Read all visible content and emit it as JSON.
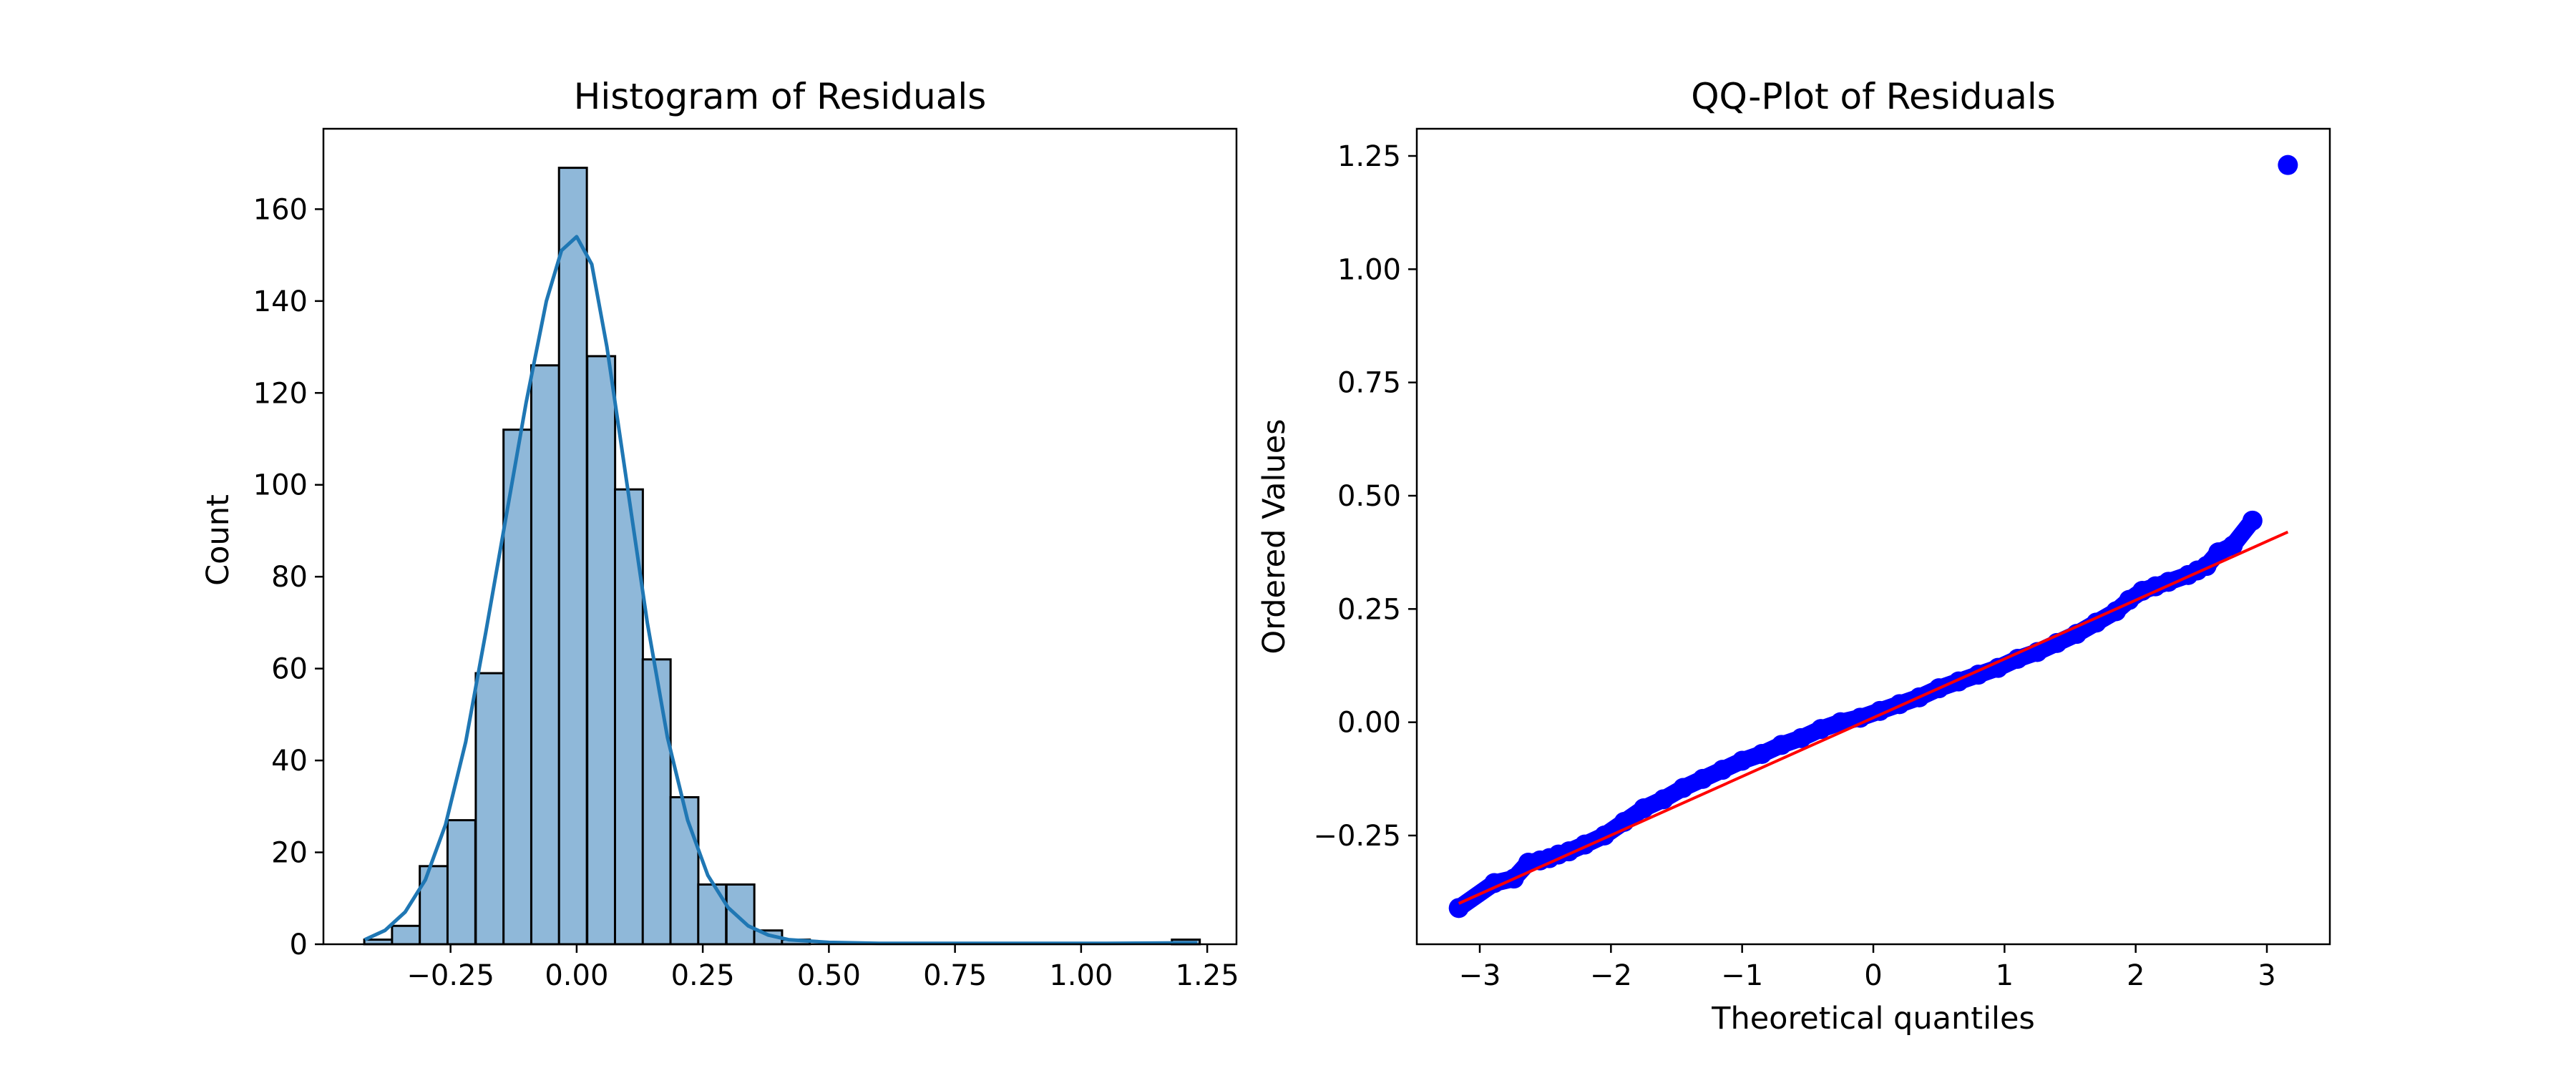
{
  "colors": {
    "hist_fill": "#8fb8d9",
    "hist_edge": "#000000",
    "kde": "#1f77b4",
    "qq_points": "#0000ff",
    "qq_line": "#ff0000"
  },
  "chart_data": [
    {
      "type": "bar",
      "title": "Histogram of Residuals",
      "xlabel": "",
      "ylabel": "Count",
      "bin_width": 0.0552,
      "bins": [
        {
          "x0": -0.421,
          "count": 1
        },
        {
          "x0": -0.366,
          "count": 4
        },
        {
          "x0": -0.311,
          "count": 17
        },
        {
          "x0": -0.256,
          "count": 27
        },
        {
          "x0": -0.2,
          "count": 59
        },
        {
          "x0": -0.145,
          "count": 112
        },
        {
          "x0": -0.09,
          "count": 126
        },
        {
          "x0": -0.035,
          "count": 169
        },
        {
          "x0": 0.021,
          "count": 128
        },
        {
          "x0": 0.076,
          "count": 99
        },
        {
          "x0": 0.131,
          "count": 62
        },
        {
          "x0": 0.186,
          "count": 32
        },
        {
          "x0": 0.241,
          "count": 13
        },
        {
          "x0": 0.297,
          "count": 13
        },
        {
          "x0": 0.352,
          "count": 3
        },
        {
          "x0": 0.407,
          "count": 1
        },
        {
          "x0": 1.18,
          "count": 1
        }
      ],
      "kde": {
        "x": [
          -0.42,
          -0.38,
          -0.34,
          -0.3,
          -0.26,
          -0.22,
          -0.18,
          -0.14,
          -0.1,
          -0.06,
          -0.03,
          0.0,
          0.03,
          0.06,
          0.1,
          0.14,
          0.18,
          0.22,
          0.26,
          0.3,
          0.34,
          0.38,
          0.42,
          0.5,
          0.6,
          0.75,
          0.9,
          1.05,
          1.2,
          1.23
        ],
        "y": [
          1,
          3,
          7,
          14,
          26,
          44,
          68,
          93,
          118,
          140,
          151,
          154,
          148,
          130,
          100,
          70,
          45,
          27,
          15,
          8,
          4,
          2,
          1,
          0.4,
          0.2,
          0.2,
          0.2,
          0.2,
          0.3,
          0.3
        ]
      },
      "xticks": [
        "−0.25",
        "0.00",
        "0.25",
        "0.50",
        "0.75",
        "1.00",
        "1.25"
      ],
      "xtick_values": [
        -0.25,
        0,
        0.25,
        0.5,
        0.75,
        1.0,
        1.25
      ],
      "yticks": [
        "0",
        "20",
        "40",
        "60",
        "80",
        "100",
        "120",
        "140",
        "160"
      ],
      "ytick_values": [
        0,
        20,
        40,
        60,
        80,
        100,
        120,
        140,
        160
      ],
      "xlim": [
        -0.502,
        1.308
      ],
      "ylim": [
        0,
        177.5
      ],
      "grid": false
    },
    {
      "type": "scatter",
      "title": "QQ-Plot of Residuals",
      "xlabel": "Theoretical quantiles",
      "ylabel": "Ordered Values",
      "points": [
        [
          -3.16,
          -0.41
        ],
        [
          -2.89,
          -0.355
        ],
        [
          -2.74,
          -0.345
        ],
        [
          -2.63,
          -0.31
        ],
        [
          -2.54,
          -0.305
        ],
        [
          -2.47,
          -0.3
        ],
        [
          -2.4,
          -0.292
        ],
        [
          -2.32,
          -0.285
        ],
        [
          -2.2,
          -0.27
        ],
        [
          -2.05,
          -0.25
        ],
        [
          -1.9,
          -0.22
        ],
        [
          -1.75,
          -0.19
        ],
        [
          -1.6,
          -0.17
        ],
        [
          -1.45,
          -0.145
        ],
        [
          -1.3,
          -0.125
        ],
        [
          -1.15,
          -0.105
        ],
        [
          -1.0,
          -0.085
        ],
        [
          -0.85,
          -0.07
        ],
        [
          -0.7,
          -0.05
        ],
        [
          -0.55,
          -0.035
        ],
        [
          -0.4,
          -0.015
        ],
        [
          -0.25,
          0.0
        ],
        [
          -0.1,
          0.01
        ],
        [
          0.05,
          0.025
        ],
        [
          0.2,
          0.04
        ],
        [
          0.35,
          0.055
        ],
        [
          0.5,
          0.075
        ],
        [
          0.65,
          0.09
        ],
        [
          0.8,
          0.105
        ],
        [
          0.95,
          0.12
        ],
        [
          1.1,
          0.14
        ],
        [
          1.25,
          0.155
        ],
        [
          1.4,
          0.175
        ],
        [
          1.55,
          0.195
        ],
        [
          1.7,
          0.22
        ],
        [
          1.85,
          0.245
        ],
        [
          1.95,
          0.27
        ],
        [
          2.05,
          0.29
        ],
        [
          2.15,
          0.3
        ],
        [
          2.25,
          0.31
        ],
        [
          2.4,
          0.325
        ],
        [
          2.47,
          0.335
        ],
        [
          2.54,
          0.345
        ],
        [
          2.63,
          0.375
        ],
        [
          2.74,
          0.39
        ],
        [
          2.89,
          0.445
        ],
        [
          3.16,
          1.23
        ]
      ],
      "fit_line": {
        "x": [
          -3.16,
          3.16
        ],
        "y": [
          -0.4,
          0.42
        ]
      },
      "xticks": [
        "−3",
        "−2",
        "−1",
        "0",
        "1",
        "2",
        "3"
      ],
      "xtick_values": [
        -3,
        -2,
        -1,
        0,
        1,
        2,
        3
      ],
      "yticks": [
        "−0.25",
        "0.00",
        "0.25",
        "0.50",
        "0.75",
        "1.00",
        "1.25"
      ],
      "ytick_values": [
        -0.25,
        0,
        0.25,
        0.5,
        0.75,
        1.0,
        1.25
      ],
      "xlim": [
        -3.48,
        3.48
      ],
      "ylim": [
        -0.49,
        1.31
      ],
      "grid": false
    }
  ]
}
